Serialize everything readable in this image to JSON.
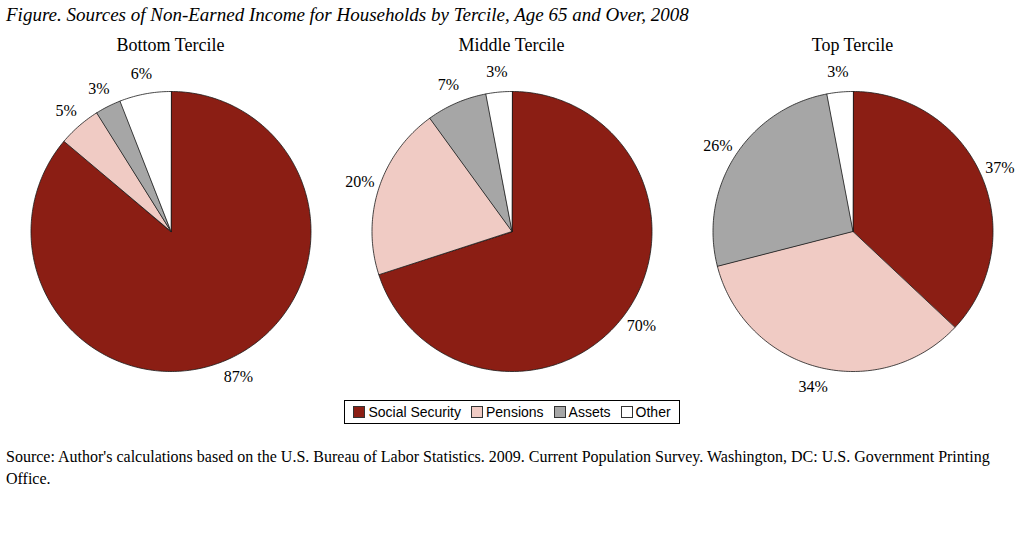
{
  "title": "Figure. Sources of Non-Earned Income for Households by Tercile, Age 65 and Over, 2008",
  "source": "Source: Author's calculations based on the U.S. Bureau of Labor Statistics. 2009. Current Population Survey. Washington, DC: U.S. Government Printing Office.",
  "chart_data": [
    {
      "type": "pie",
      "title": "Bottom Tercile",
      "categories": [
        "Social Security",
        "Pensions",
        "Assets",
        "Other"
      ],
      "values": [
        87,
        5,
        3,
        6
      ],
      "value_labels": [
        "87%",
        "5%",
        "3%",
        "6%"
      ],
      "colors": [
        "#8b1e14",
        "#f0cbc4",
        "#a6a6a6",
        "#ffffff"
      ],
      "data_labels": true,
      "legend": "bottom"
    },
    {
      "type": "pie",
      "title": "Middle Tercile",
      "categories": [
        "Social Security",
        "Pensions",
        "Assets",
        "Other"
      ],
      "values": [
        70,
        20,
        7,
        3
      ],
      "value_labels": [
        "70%",
        "20%",
        "7%",
        "3%"
      ],
      "colors": [
        "#8b1e14",
        "#f0cbc4",
        "#a6a6a6",
        "#ffffff"
      ],
      "data_labels": true,
      "legend": "bottom"
    },
    {
      "type": "pie",
      "title": "Top Tercile",
      "categories": [
        "Social Security",
        "Pensions",
        "Assets",
        "Other"
      ],
      "values": [
        37,
        34,
        26,
        3
      ],
      "value_labels": [
        "37%",
        "34%",
        "26%",
        "3%"
      ],
      "colors": [
        "#8b1e14",
        "#f0cbc4",
        "#a6a6a6",
        "#ffffff"
      ],
      "data_labels": true,
      "legend": "bottom"
    }
  ]
}
